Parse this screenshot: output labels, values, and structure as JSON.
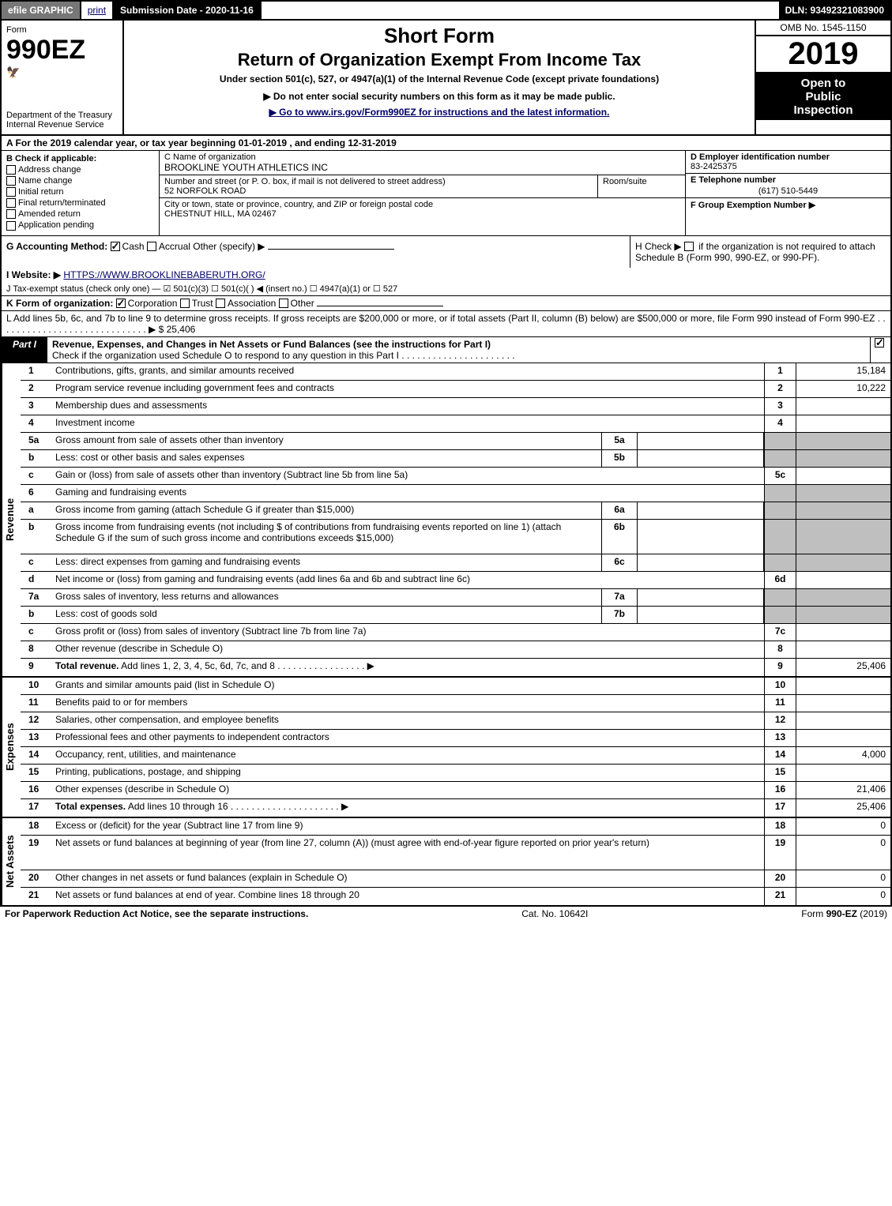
{
  "top_bar": {
    "efile": "efile GRAPHIC",
    "print": "print",
    "submission_label": "Submission Date - 2020-11-16",
    "dln": "DLN: 93492321083900"
  },
  "header": {
    "form_word": "Form",
    "form_number": "990EZ",
    "dept": "Department of the Treasury",
    "irs": "Internal Revenue Service",
    "short_form": "Short Form",
    "return_title": "Return of Organization Exempt From Income Tax",
    "under_section": "Under section 501(c), 527, or 4947(a)(1) of the Internal Revenue Code (except private foundations)",
    "no_ssn": "▶ Do not enter social security numbers on this form as it may be made public.",
    "goto": "▶ Go to www.irs.gov/Form990EZ for instructions and the latest information.",
    "omb": "OMB No. 1545-1150",
    "year": "2019",
    "open1": "Open to",
    "open2": "Public",
    "open3": "Inspection"
  },
  "line_a": "A For the 2019 calendar year, or tax year beginning 01-01-2019 , and ending 12-31-2019",
  "section_b": {
    "header": "B Check if applicable:",
    "items": [
      "Address change",
      "Name change",
      "Initial return",
      "Final return/terminated",
      "Amended return",
      "Application pending"
    ]
  },
  "section_c": {
    "name_label": "C Name of organization",
    "name_value": "BROOKLINE YOUTH ATHLETICS INC",
    "street_label": "Number and street (or P. O. box, if mail is not delivered to street address)",
    "street_value": "52 NORFOLK ROAD",
    "room_label": "Room/suite",
    "city_label": "City or town, state or province, country, and ZIP or foreign postal code",
    "city_value": "CHESTNUT HILL, MA  02467"
  },
  "section_d": {
    "label": "D Employer identification number",
    "value": "83-2425375"
  },
  "section_e": {
    "label": "E Telephone number",
    "value": "(617) 510-5449"
  },
  "section_f": {
    "label": "F Group Exemption Number  ▶"
  },
  "row_g": {
    "label": "G Accounting Method:",
    "cash": "Cash",
    "accrual": "Accrual",
    "other": "Other (specify) ▶"
  },
  "row_h": {
    "text1": "H  Check ▶",
    "text2": "if the organization is not required to attach Schedule B (Form 990, 990-EZ, or 990-PF)."
  },
  "row_i": {
    "label": "I Website: ▶",
    "value": "HTTPS://WWW.BROOKLINEBABERUTH.ORG/"
  },
  "row_j": "J Tax-exempt status (check only one) — ☑ 501(c)(3)  ☐ 501(c)(  ) ◀ (insert no.)  ☐ 4947(a)(1) or  ☐ 527",
  "row_k": {
    "label": "K Form of organization:",
    "corp": "Corporation",
    "trust": "Trust",
    "assoc": "Association",
    "other": "Other"
  },
  "row_l": {
    "text": "L Add lines 5b, 6c, and 7b to line 9 to determine gross receipts. If gross receipts are $200,000 or more, or if total assets (Part II, column (B) below) are $500,000 or more, file Form 990 instead of Form 990-EZ  .  .  .  .  .  .  .  .  .  .  .  .  .  .  .  .  .  .  .  .  .  .  .  .  .  .  .  .  .  ▶ $",
    "value": "25,406"
  },
  "part1": {
    "label": "Part I",
    "title": "Revenue, Expenses, and Changes in Net Assets or Fund Balances (see the instructions for Part I)",
    "check": "Check if the organization used Schedule O to respond to any question in this Part I  .  .  .  .  .  .  .  .  .  .  .  .  .  .  .  .  .  .  .  .  .  ."
  },
  "side_labels": {
    "revenue": "Revenue",
    "expenses": "Expenses",
    "netassets": "Net Assets"
  },
  "lines": {
    "revenue": [
      {
        "n": "1",
        "d": "Contributions, gifts, grants, and similar amounts received",
        "r": "1",
        "amt": "15,184"
      },
      {
        "n": "2",
        "d": "Program service revenue including government fees and contracts",
        "r": "2",
        "amt": "10,222"
      },
      {
        "n": "3",
        "d": "Membership dues and assessments",
        "r": "3",
        "amt": ""
      },
      {
        "n": "4",
        "d": "Investment income",
        "r": "4",
        "amt": ""
      },
      {
        "n": "5a",
        "d": "Gross amount from sale of assets other than inventory",
        "sub": "5a",
        "subgrey": false
      },
      {
        "n": "b",
        "d": "Less: cost or other basis and sales expenses",
        "sub": "5b",
        "subgrey": false
      },
      {
        "n": "c",
        "d": "Gain or (loss) from sale of assets other than inventory (Subtract line 5b from line 5a)",
        "r": "5c",
        "amt": ""
      },
      {
        "n": "6",
        "d": "Gaming and fundraising events",
        "greyright": true
      },
      {
        "n": "a",
        "d": "Gross income from gaming (attach Schedule G if greater than $15,000)",
        "sub": "6a",
        "subgrey": false
      },
      {
        "n": "b",
        "d": "Gross income from fundraising events (not including $                    of contributions from fundraising events reported on line 1) (attach Schedule G if the sum of such gross income and contributions exceeds $15,000)",
        "sub": "6b",
        "subgrey": false,
        "tall": true
      },
      {
        "n": "c",
        "d": "Less: direct expenses from gaming and fundraising events",
        "sub": "6c",
        "subgrey": false
      },
      {
        "n": "d",
        "d": "Net income or (loss) from gaming and fundraising events (add lines 6a and 6b and subtract line 6c)",
        "r": "6d",
        "amt": ""
      },
      {
        "n": "7a",
        "d": "Gross sales of inventory, less returns and allowances",
        "sub": "7a",
        "subgrey": false
      },
      {
        "n": "b",
        "d": "Less: cost of goods sold",
        "sub": "7b",
        "subgrey": false
      },
      {
        "n": "c",
        "d": "Gross profit or (loss) from sales of inventory (Subtract line 7b from line 7a)",
        "r": "7c",
        "amt": ""
      },
      {
        "n": "8",
        "d": "Other revenue (describe in Schedule O)",
        "r": "8",
        "amt": ""
      },
      {
        "n": "9",
        "d": "Total revenue. Add lines 1, 2, 3, 4, 5c, 6d, 7c, and 8   .  .  .  .  .  .  .  .  .  .  .  .  .  .  .  .  . ▶",
        "r": "9",
        "amt": "25,406",
        "bold": true
      }
    ],
    "expenses": [
      {
        "n": "10",
        "d": "Grants and similar amounts paid (list in Schedule O)",
        "r": "10",
        "amt": ""
      },
      {
        "n": "11",
        "d": "Benefits paid to or for members",
        "r": "11",
        "amt": ""
      },
      {
        "n": "12",
        "d": "Salaries, other compensation, and employee benefits",
        "r": "12",
        "amt": ""
      },
      {
        "n": "13",
        "d": "Professional fees and other payments to independent contractors",
        "r": "13",
        "amt": ""
      },
      {
        "n": "14",
        "d": "Occupancy, rent, utilities, and maintenance",
        "r": "14",
        "amt": "4,000"
      },
      {
        "n": "15",
        "d": "Printing, publications, postage, and shipping",
        "r": "15",
        "amt": ""
      },
      {
        "n": "16",
        "d": "Other expenses (describe in Schedule O)",
        "r": "16",
        "amt": "21,406"
      },
      {
        "n": "17",
        "d": "Total expenses. Add lines 10 through 16   .  .  .  .  .  .  .  .  .  .  .  .  .  .  .  .  .  .  .  .  . ▶",
        "r": "17",
        "amt": "25,406",
        "bold": true
      }
    ],
    "netassets": [
      {
        "n": "18",
        "d": "Excess or (deficit) for the year (Subtract line 17 from line 9)",
        "r": "18",
        "amt": "0"
      },
      {
        "n": "19",
        "d": "Net assets or fund balances at beginning of year (from line 27, column (A)) (must agree with end-of-year figure reported on prior year's return)",
        "r": "19",
        "amt": "0",
        "tall": true
      },
      {
        "n": "20",
        "d": "Other changes in net assets or fund balances (explain in Schedule O)",
        "r": "20",
        "amt": "0"
      },
      {
        "n": "21",
        "d": "Net assets or fund balances at end of year. Combine lines 18 through 20",
        "r": "21",
        "amt": "0"
      }
    ]
  },
  "footer": {
    "left": "For Paperwork Reduction Act Notice, see the separate instructions.",
    "mid": "Cat. No. 10642I",
    "right": "Form 990-EZ (2019)"
  },
  "colors": {
    "black": "#000000",
    "white": "#ffffff",
    "grey_btn": "#777777",
    "grey_cell": "#bfbfbf",
    "link": "#000066"
  }
}
